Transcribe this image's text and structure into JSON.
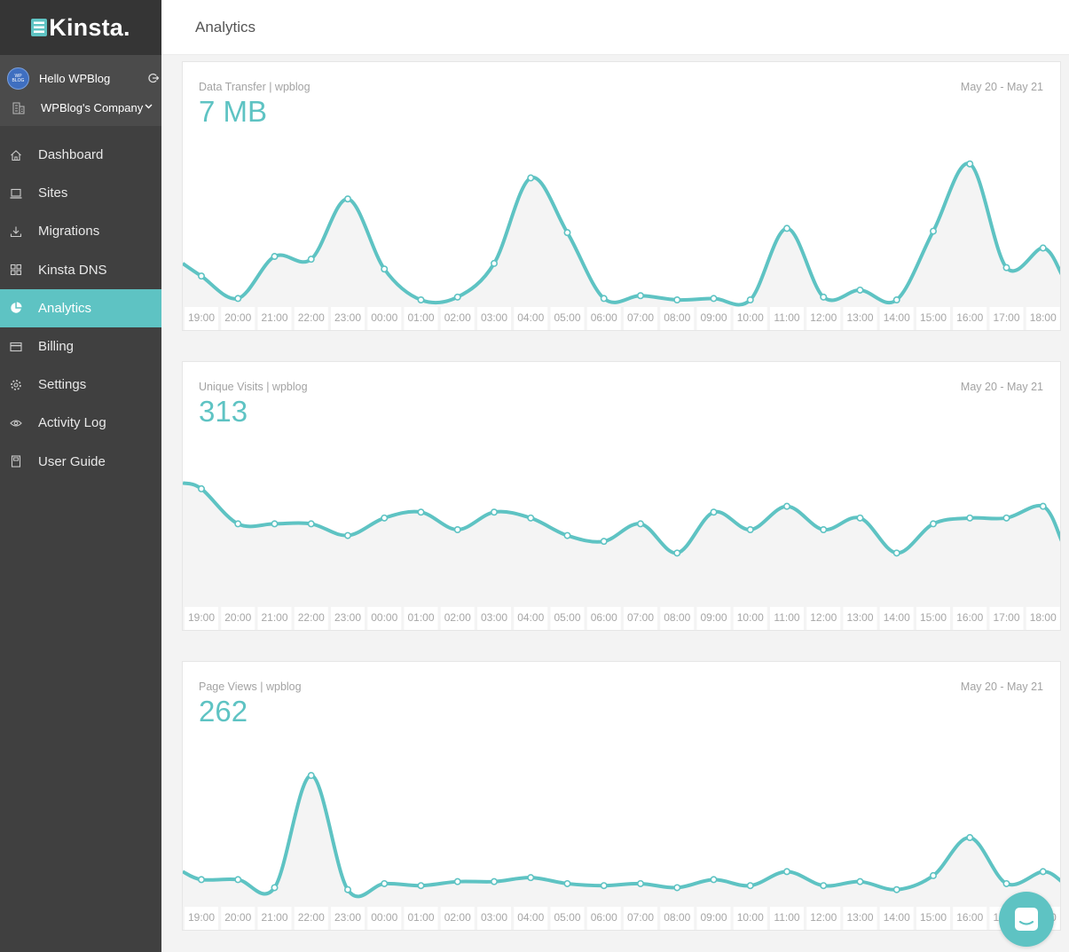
{
  "brand": {
    "name": "Kinsta.",
    "accent": "#5ec3c3",
    "sidebar_bg": "#404040"
  },
  "account": {
    "avatar_text": "WP BLOG",
    "greeting": "Hello WPBlog",
    "company": "WPBlog's Company"
  },
  "nav": [
    {
      "label": "Dashboard",
      "icon": "home-icon"
    },
    {
      "label": "Sites",
      "icon": "laptop-icon"
    },
    {
      "label": "Migrations",
      "icon": "download-icon"
    },
    {
      "label": "Kinsta DNS",
      "icon": "grid-icon"
    },
    {
      "label": "Analytics",
      "icon": "pie-chart-icon",
      "active": true
    },
    {
      "label": "Billing",
      "icon": "credit-card-icon"
    },
    {
      "label": "Settings",
      "icon": "gear-icon"
    },
    {
      "label": "Activity Log",
      "icon": "eye-icon"
    },
    {
      "label": "User Guide",
      "icon": "book-icon"
    }
  ],
  "header": {
    "title": "Analytics"
  },
  "cards": [
    {
      "label": "Data Transfer | wpblog",
      "value": "7 MB",
      "date_range": "May 20 - May 21"
    },
    {
      "label": "Unique Visits | wpblog",
      "value": "313",
      "date_range": "May 20 - May 21"
    },
    {
      "label": "Page Views | wpblog",
      "value": "262",
      "date_range": "May 20 - May 21"
    }
  ],
  "chart_data": [
    {
      "type": "area",
      "title": "Data Transfer | wpblog",
      "x": [
        "19:00",
        "20:00",
        "21:00",
        "22:00",
        "23:00",
        "00:00",
        "01:00",
        "02:00",
        "03:00",
        "04:00",
        "05:00",
        "06:00",
        "07:00",
        "08:00",
        "09:00",
        "10:00",
        "11:00",
        "12:00",
        "13:00",
        "14:00",
        "15:00",
        "16:00",
        "17:00",
        "18:00"
      ],
      "values": [
        0.17,
        0.01,
        0.31,
        0.29,
        0.72,
        0.22,
        0.0,
        0.02,
        0.26,
        0.87,
        0.48,
        0.01,
        0.03,
        0.0,
        0.01,
        0.0,
        0.51,
        0.02,
        0.07,
        0.0,
        0.49,
        0.97,
        0.23,
        0.37
      ],
      "start_value": 0.26,
      "end_value": 0.18,
      "ylim": [
        0,
        1
      ],
      "grid": false
    },
    {
      "type": "area",
      "title": "Unique Visits | wpblog",
      "x": [
        "19:00",
        "20:00",
        "21:00",
        "22:00",
        "23:00",
        "00:00",
        "01:00",
        "02:00",
        "03:00",
        "04:00",
        "05:00",
        "06:00",
        "07:00",
        "08:00",
        "09:00",
        "10:00",
        "11:00",
        "12:00",
        "13:00",
        "14:00",
        "15:00",
        "16:00",
        "17:00",
        "18:00"
      ],
      "values": [
        19,
        13,
        13,
        13,
        11,
        14,
        15,
        12,
        15,
        14,
        11,
        10,
        13,
        8,
        15,
        12,
        16,
        12,
        14,
        8,
        13,
        14,
        14,
        16
      ],
      "start_value": 20,
      "end_value": 10,
      "ylim": [
        0,
        24
      ],
      "grid": false
    },
    {
      "type": "area",
      "title": "Page Views | wpblog",
      "x": [
        "19:00",
        "20:00",
        "21:00",
        "22:00",
        "23:00",
        "00:00",
        "01:00",
        "02:00",
        "03:00",
        "04:00",
        "05:00",
        "06:00",
        "07:00",
        "08:00",
        "09:00",
        "10:00",
        "11:00",
        "12:00",
        "13:00",
        "14:00",
        "15:00",
        "16:00",
        "17:00",
        "18:00"
      ],
      "values": [
        10,
        10,
        6,
        62,
        5,
        8,
        7,
        9,
        9,
        11,
        8,
        7,
        8,
        6,
        10,
        7,
        14,
        7,
        9,
        5,
        12,
        31,
        8,
        14
      ],
      "start_value": 14,
      "end_value": 9,
      "ylim": [
        0,
        70
      ],
      "grid": false
    }
  ]
}
